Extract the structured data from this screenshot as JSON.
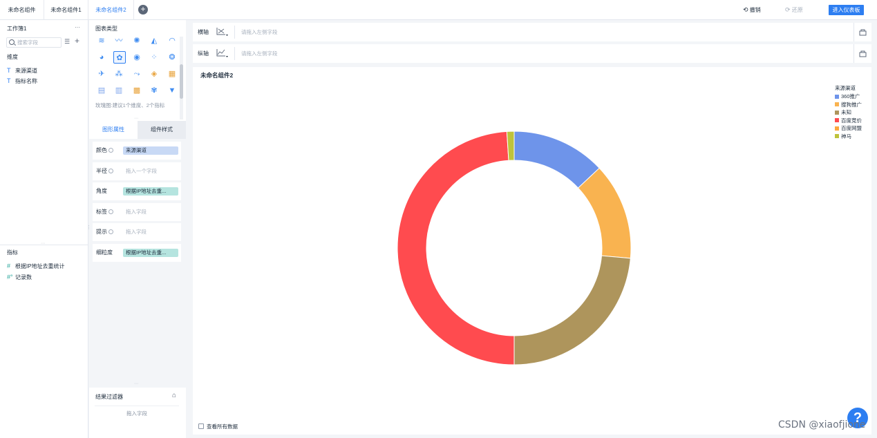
{
  "tabs": [
    {
      "label": "未命名组件",
      "active": false
    },
    {
      "label": "未命名组件1",
      "active": false
    },
    {
      "label": "未命名组件2",
      "active": true
    }
  ],
  "add_tab_label": "+",
  "toolbar": {
    "undo_label": "撤销",
    "redo_label": "还原",
    "enter_dashboard_label": "进入仪表板"
  },
  "left_panel": {
    "workbook_title": "工作簿1",
    "more_label": "···",
    "search_placeholder": "搜索字段",
    "dimension_header": "维度",
    "dimensions": [
      {
        "icon": "T",
        "label": "来源渠道"
      },
      {
        "icon": "T",
        "label": "指标名称"
      }
    ],
    "measure_header": "指标",
    "measures": [
      {
        "icon": "#",
        "label": "根据IP地址去重统计"
      },
      {
        "icon": "#°",
        "label": "记录数"
      }
    ]
  },
  "chart_types": {
    "header": "图表类型",
    "hint": "玫瑰图:建议1个维度、2个指标"
  },
  "properties": {
    "tab_shape": "图形属性",
    "tab_style": "组件样式",
    "rows": [
      {
        "label": "颜色",
        "value": "来源渠道",
        "kind": "blue"
      },
      {
        "label": "半径",
        "value": "拖入一个字段",
        "kind": "empty"
      },
      {
        "label": "角度",
        "value": "根据IP地址去重...",
        "kind": "teal"
      },
      {
        "label": "标签",
        "value": "拖入字段",
        "kind": "empty"
      },
      {
        "label": "提示",
        "value": "拖入字段",
        "kind": "empty"
      },
      {
        "label": "细粒度",
        "value": "根据IP地址去重...",
        "kind": "teal"
      }
    ]
  },
  "result_filter": {
    "title": "结果过滤器",
    "drop_hint": "拖入字段"
  },
  "axes": {
    "x_label": "横轴",
    "x_hint": "请拖入左侧字段",
    "y_label": "纵轴",
    "y_hint": "请拖入左侧字段"
  },
  "chart": {
    "view_all_label": "查看所有数据"
  },
  "chart_data": {
    "type": "pie",
    "title": "未命名组件2",
    "legend_title": "来源渠道",
    "legend_position": "top-right",
    "donut": true,
    "slices": [
      {
        "name": "360推广",
        "value": 13.0,
        "color": "#6e94ea"
      },
      {
        "name": "搜狗推广",
        "value": 13.4,
        "color": "#f9b350"
      },
      {
        "name": "未知",
        "value": 23.6,
        "color": "#ae955c"
      },
      {
        "name": "百度竞价",
        "value": 49.0,
        "color": "#ff4b4f"
      },
      {
        "name": "百度网盟",
        "value": 0.0,
        "color": "#fda83d"
      },
      {
        "name": "神马",
        "value": 1.0,
        "color": "#bfc33b"
      }
    ]
  },
  "help_label": "?",
  "watermark": "CSDN @xiaofjione"
}
